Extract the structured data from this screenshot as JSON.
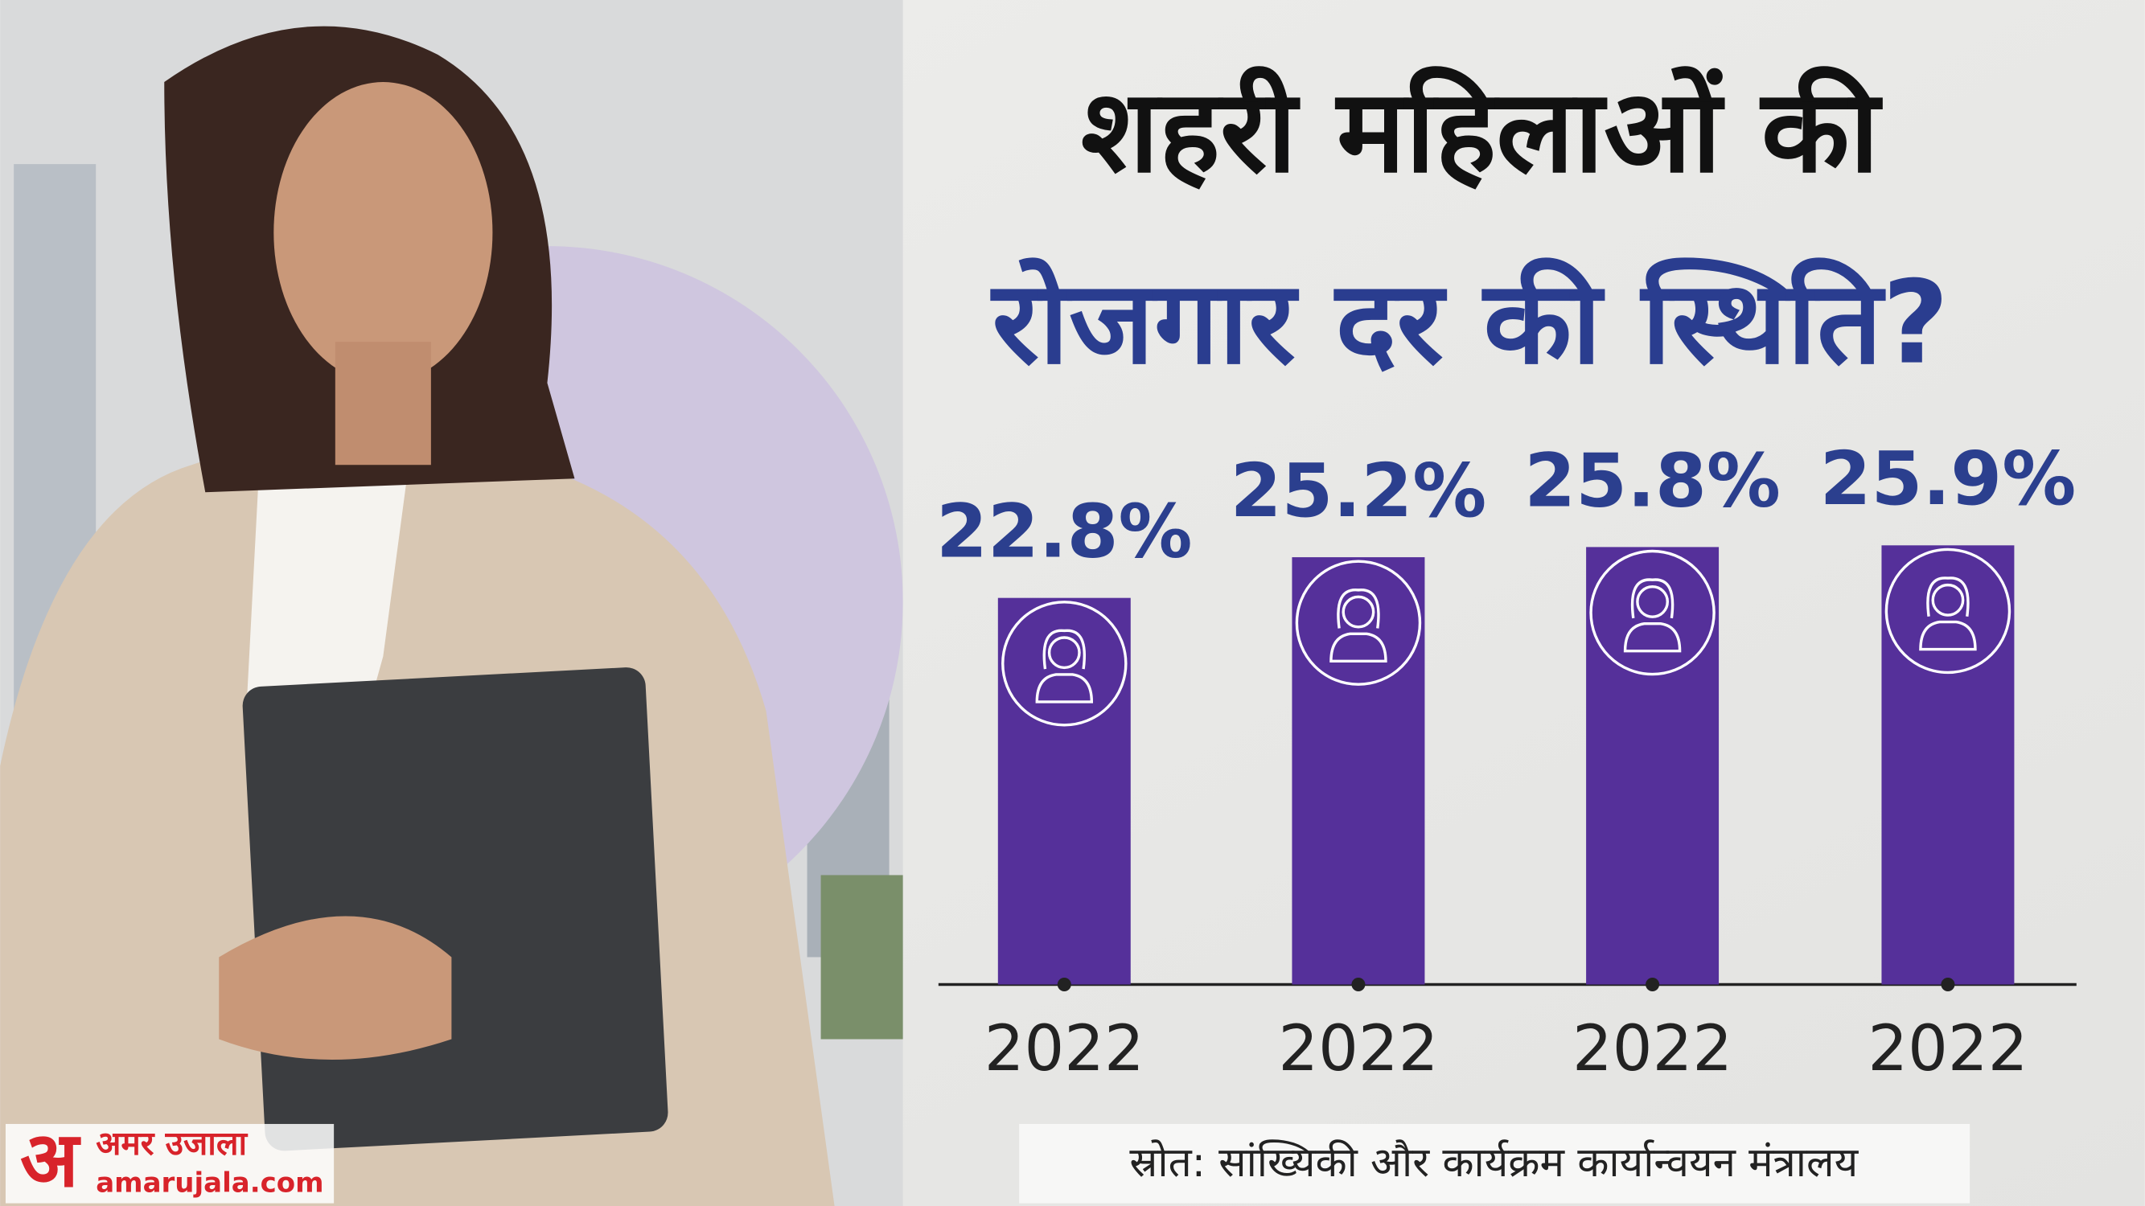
{
  "chart_data": {
    "type": "bar",
    "title": [
      "शहरी महिलाओं की",
      "रोजगार दर की स्थिति?"
    ],
    "categories": [
      "2022",
      "2022",
      "2022",
      "2022"
    ],
    "values": [
      22.8,
      25.2,
      25.8,
      25.9
    ],
    "value_labels": [
      "22.8%",
      "25.2%",
      "25.8%",
      "25.9%"
    ],
    "color": "#55309a",
    "source": "स्रोत: सांख्यिकी और कार्यक्रम कार्यान्वयन मंत्रालय"
  },
  "logo": {
    "mark": "अ",
    "name": "अमर उजाला",
    "site": "amarujala.com"
  }
}
